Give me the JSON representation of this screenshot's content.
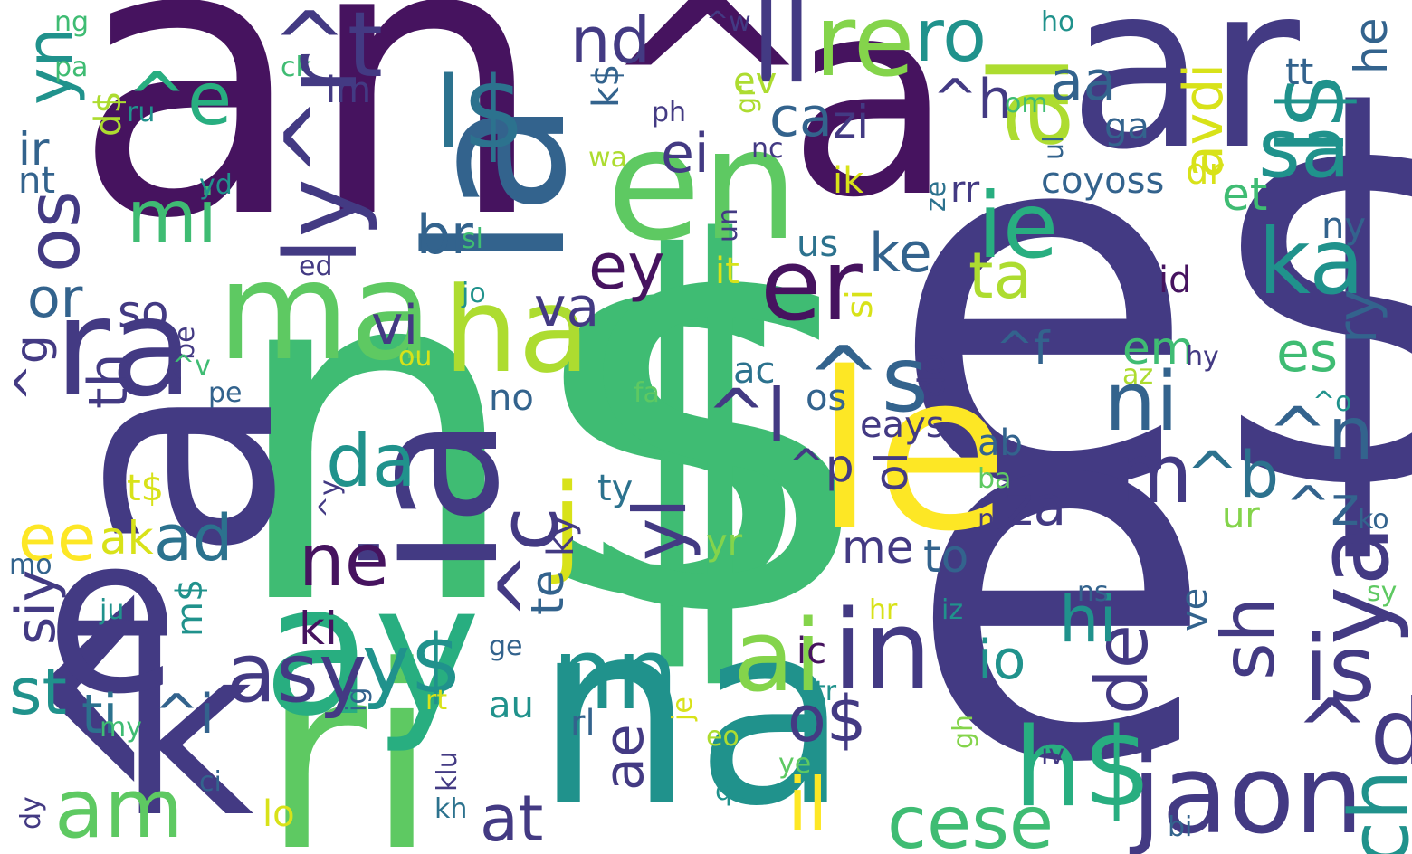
{
  "palette": {
    "dark_purple": "#46135f",
    "indigo": "#433a83",
    "blue": "#33638d",
    "teal_blue": "#2c728e",
    "teal": "#20928c",
    "green_teal": "#28ae80",
    "green": "#3fbc73",
    "light_green": "#5ec962",
    "lime": "#84d44b",
    "yellow_green": "#addc30",
    "yellow": "#d8e219",
    "bright_yellow": "#fde725"
  },
  "words": [
    "an",
    "n$",
    "e$",
    "e",
    "$",
    "na",
    "ri",
    "ay",
    "k",
    "^",
    "a",
    "ar",
    "ia",
    "la",
    "en",
    "^a",
    "le",
    "ma",
    "ha",
    "ra",
    "e",
    "l$",
    "^e",
    "^t",
    "ll",
    "re",
    "ro",
    "nd",
    "er",
    "ie",
    "sa",
    "ka",
    "l$",
    "al",
    "in",
    "ai",
    "nn",
    "jaon",
    "h$",
    "is",
    "^d",
    "ch",
    "cese",
    "il",
    "at",
    "am",
    "ti",
    "st",
    "siy",
    "asy",
    "y$",
    "o$",
    "ae",
    "de",
    "sh",
    "ya",
    "hi",
    "io",
    "za",
    "me",
    "to",
    "m",
    "^b",
    "^n",
    "ni",
    "^s",
    "^l",
    "yl",
    "^c",
    "j",
    "ne",
    "ki",
    "da",
    "ad",
    "ee",
    "ak",
    "mi",
    "ir",
    "yn",
    "os",
    "or",
    "th",
    "^g",
    "so",
    "va",
    "vi",
    "ey",
    "br",
    "ei",
    "ca",
    "zi",
    "aa",
    "^h",
    "ta",
    "ke",
    "us",
    "es",
    "em",
    "ry",
    "^f",
    "ol",
    "eays",
    "ab",
    "^p",
    "^z",
    "ko",
    "sy",
    "id",
    "et",
    "ny",
    "avdi",
    "he",
    "tt",
    "ga",
    "dr",
    "ik",
    "rr",
    "coyoss",
    "ul",
    "om",
    "ho",
    "^w",
    "im",
    "ck",
    "pa",
    "ng",
    "d$",
    "ru",
    "nt",
    "yd",
    "ed",
    "sl",
    "jo",
    "it",
    "si",
    "do",
    "ac",
    "os",
    "no",
    "fa",
    "ou",
    "^be",
    "^v",
    "pe",
    "t$",
    "ty",
    "ky",
    "te",
    "mo",
    "ju",
    "m$",
    "^y",
    "ge",
    "ig",
    "^i",
    "my",
    "ci",
    "dy",
    "lo",
    "kh",
    "klu",
    "rt",
    "au",
    "je",
    "rl",
    "eo",
    "qu",
    "tr",
    "ic",
    "hr",
    "iz",
    "gh",
    "ye",
    "iv",
    "ns",
    "bi",
    "ve",
    "ur",
    "nl",
    "ba",
    "az",
    "hy",
    "^o",
    "ev",
    "gr",
    "nc",
    "wa",
    "k$",
    "ph",
    "un",
    "ze",
    "yr",
    "ly^r"
  ]
}
